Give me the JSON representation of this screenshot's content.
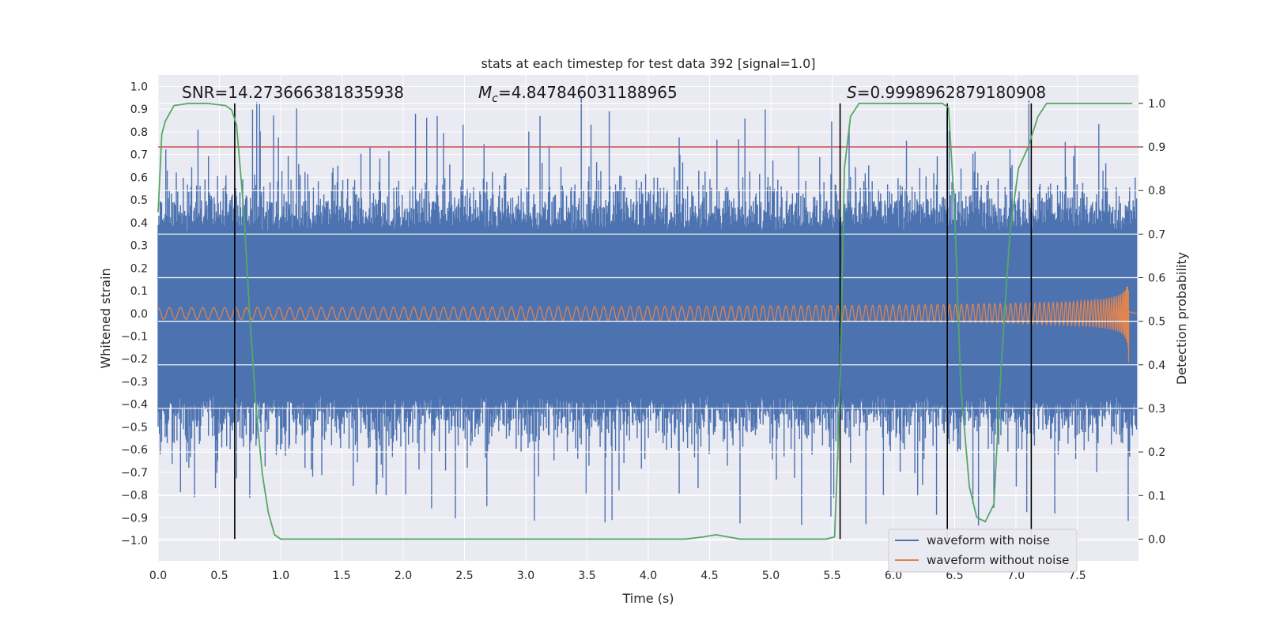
{
  "chart_data": {
    "type": "line",
    "title": "stats at each timestep for test data 392 [signal=1.0]",
    "xlabel": "Time (s)",
    "ylabel": "Whitened strain",
    "y2label": "Detection probability",
    "xlim": [
      0.0,
      8.0
    ],
    "ylim": [
      -1.09,
      1.05
    ],
    "y2lim": [
      -0.05,
      1.065
    ],
    "xticks": [
      0.0,
      0.5,
      1.0,
      1.5,
      2.0,
      2.5,
      3.0,
      3.5,
      4.0,
      4.5,
      5.0,
      5.5,
      6.0,
      6.5,
      7.0,
      7.5
    ],
    "yticks": [
      -1.0,
      -0.9,
      -0.8,
      -0.7,
      -0.6,
      -0.5,
      -0.4,
      -0.3,
      -0.2,
      -0.1,
      0.0,
      0.1,
      0.2,
      0.3,
      0.4,
      0.5,
      0.6,
      0.7,
      0.8,
      0.9,
      1.0
    ],
    "y2ticks": [
      0.0,
      0.1,
      0.2,
      0.3,
      0.4,
      0.5,
      0.6,
      0.7,
      0.8,
      0.9,
      1.0
    ],
    "grid": true,
    "legend_position": "bottom-right",
    "annotations": {
      "snr": "SNR=14.273666381835938",
      "mc_symbol": "M",
      "mc_sub": "c",
      "mc_value": "=4.847846031188965",
      "s_symbol": "S",
      "s_value": "=0.9998962879180908"
    },
    "threshold": {
      "value": 0.9,
      "axis": "right",
      "color": "#c44e52"
    },
    "vertical_lines": [
      0.625,
      5.565,
      6.44,
      7.125
    ],
    "series": [
      {
        "name": "waveform with noise",
        "color": "#4c72b0",
        "axis": "left",
        "description_values": {
          "x_range": [
            0.0,
            7.99
          ],
          "typical_amplitude": 0.45,
          "peak_positive": 0.96,
          "peak_negative": -1.0
        }
      },
      {
        "name": "waveform without noise",
        "color": "#dd8452",
        "axis": "left",
        "description_values": {
          "x_range": [
            0.0,
            7.99
          ],
          "amplitude_start": 0.03,
          "amplitude_end": 0.34,
          "merger_time": 7.92
        }
      },
      {
        "name": "",
        "color": "#55a868",
        "axis": "right",
        "x": [
          0.0,
          0.03,
          0.06,
          0.13,
          0.25,
          0.4,
          0.55,
          0.6,
          0.64,
          0.7,
          0.75,
          0.8,
          0.85,
          0.9,
          0.95,
          1.0,
          1.08,
          1.2,
          1.5,
          2.0,
          2.5,
          3.0,
          3.5,
          4.0,
          4.3,
          4.45,
          4.55,
          4.65,
          4.75,
          5.0,
          5.3,
          5.45,
          5.52,
          5.56,
          5.6,
          5.65,
          5.72,
          5.8,
          6.0,
          6.2,
          6.4,
          6.45,
          6.5,
          6.55,
          6.62,
          6.68,
          6.75,
          6.82,
          6.88,
          6.95,
          7.02,
          7.1,
          7.18,
          7.25,
          7.4,
          7.6,
          7.8,
          7.95
        ],
        "y": [
          0.75,
          0.93,
          0.96,
          0.995,
          1.0,
          1.0,
          0.995,
          0.985,
          0.95,
          0.75,
          0.5,
          0.3,
          0.15,
          0.06,
          0.01,
          0.0,
          0.0,
          0.0,
          0.0,
          0.0,
          0.0,
          0.0,
          0.0,
          0.0,
          0.0,
          0.005,
          0.01,
          0.005,
          0.0,
          0.0,
          0.0,
          0.0,
          0.005,
          0.3,
          0.85,
          0.97,
          1.0,
          1.0,
          1.0,
          1.0,
          1.0,
          0.99,
          0.75,
          0.35,
          0.12,
          0.05,
          0.04,
          0.08,
          0.4,
          0.7,
          0.85,
          0.9,
          0.97,
          1.0,
          1.0,
          1.0,
          1.0,
          1.0
        ]
      }
    ]
  }
}
